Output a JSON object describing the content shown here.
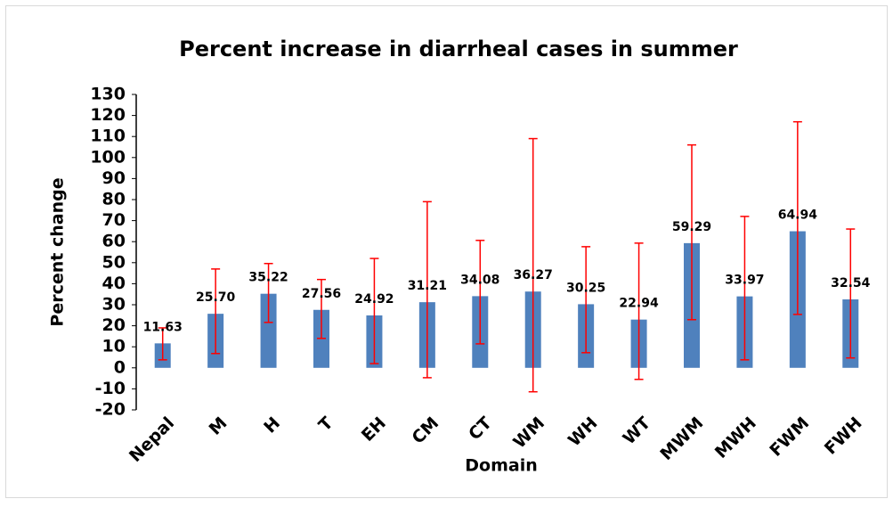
{
  "chart_data": {
    "type": "bar",
    "title": "Percent increase in diarrheal cases in summer",
    "x_label": "Domain",
    "y_label": "Percent change",
    "categories": [
      "Nepal",
      "M",
      "H",
      "T",
      "EH",
      "CM",
      "CT",
      "WM",
      "WH",
      "WT",
      "MWM",
      "MWH",
      "FWM",
      "FWH"
    ],
    "series": [
      {
        "color": "#4f81bd",
        "error_color": "#ff0000",
        "values": [
          11.63,
          25.7,
          35.22,
          27.56,
          24.92,
          31.21,
          34.08,
          36.27,
          30.25,
          22.94,
          59.29,
          33.97,
          64.94,
          32.54
        ],
        "value_labels": [
          "11.63",
          "25.70",
          "35.22",
          "27.56",
          "24.92",
          "31.21",
          "34.08",
          "36.27",
          "30.25",
          "22.94",
          "59.29",
          "33.97",
          "64.94",
          "32.54"
        ],
        "lower": [
          3.8,
          6.8,
          21.6,
          14,
          2,
          -4.7,
          11.4,
          -11.4,
          7.2,
          -5.5,
          22.9,
          3.8,
          25.4,
          4.7
        ],
        "upper": [
          19,
          47,
          49.6,
          42,
          52,
          79,
          60.6,
          109,
          57.6,
          59.3,
          106,
          72,
          117,
          66
        ]
      }
    ],
    "ylim": [
      -20,
      130
    ],
    "yticks": [
      -20,
      -10,
      0,
      10,
      20,
      30,
      40,
      50,
      60,
      70,
      80,
      90,
      100,
      110,
      120,
      130
    ]
  }
}
